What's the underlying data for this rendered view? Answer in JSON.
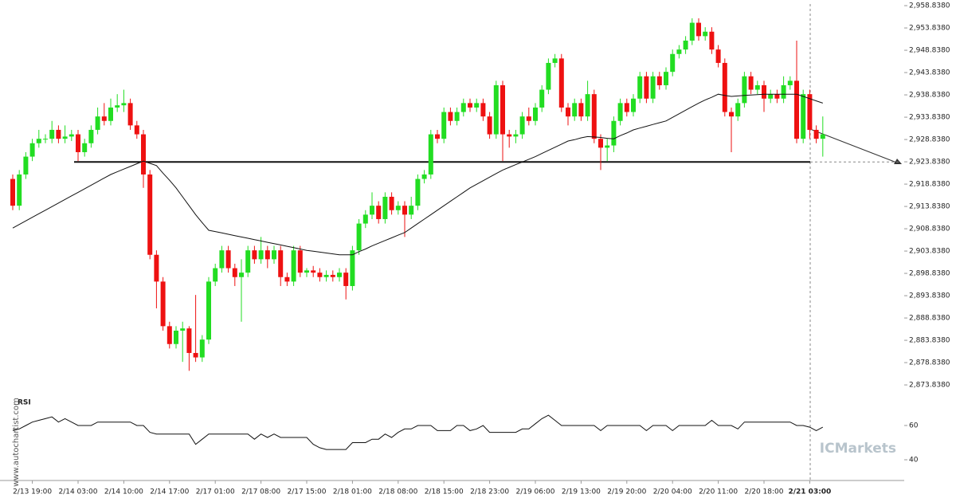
{
  "chart_data": [
    {
      "type": "candlestick",
      "categories": [
        null,
        null,
        null,
        "2/13 19:00",
        null,
        null,
        null,
        null,
        null,
        null,
        "2/14 03:00",
        null,
        null,
        null,
        null,
        null,
        null,
        "2/14 10:00",
        null,
        null,
        null,
        null,
        null,
        null,
        "2/14 17:00",
        null,
        null,
        null,
        null,
        null,
        null,
        "2/17 01:00",
        null,
        null,
        null,
        null,
        null,
        null,
        "2/17 08:00",
        null,
        null,
        null,
        null,
        null,
        null,
        "2/17 15:00",
        null,
        null,
        null,
        null,
        null,
        null,
        "2/18 01:00",
        null,
        null,
        null,
        null,
        null,
        null,
        "2/18 08:00",
        null,
        null,
        null,
        null,
        null,
        null,
        "2/18 15:00",
        null,
        null,
        null,
        null,
        null,
        null,
        "2/18 23:00",
        null,
        null,
        null,
        null,
        null,
        null,
        "2/19 06:00",
        null,
        null,
        null,
        null,
        null,
        null,
        "2/19 13:00",
        null,
        null,
        null,
        null,
        null,
        null,
        "2/19 20:00",
        null,
        null,
        null,
        null,
        null,
        null,
        "2/20 04:00",
        null,
        null,
        null,
        null,
        null,
        null,
        "2/20 11:00",
        null,
        null,
        null,
        null,
        null,
        null,
        "2/20 18:00",
        null,
        null,
        null,
        null,
        null,
        null,
        "2/21 03:00",
        null,
        null
      ],
      "open": [
        2920,
        2914,
        2921,
        2925,
        2928,
        2929,
        2929,
        2931,
        2929,
        2929.5,
        2930,
        2926,
        2928,
        2931,
        2934,
        2933,
        2936,
        2936.5,
        2937,
        2932,
        2930,
        2921,
        2903,
        2897,
        2887,
        2883,
        2886,
        2886.5,
        2881,
        2880,
        2884,
        2897,
        2900,
        2904,
        2900,
        2898,
        2899,
        2904,
        2902,
        2904,
        2902,
        2904,
        2898,
        2897,
        2904,
        2899,
        2899.5,
        2899,
        2898,
        2898.5,
        2898,
        2899,
        2896,
        2904,
        2910,
        2912,
        2914,
        2911,
        2916,
        2913,
        2914,
        2912,
        2914,
        2920,
        2921,
        2930,
        2929,
        2935,
        2933,
        2935,
        2937,
        2936,
        2937,
        2934,
        2930,
        2941,
        2930,
        2929.5,
        2930,
        2934,
        2933,
        2936,
        2940,
        2946,
        2947,
        2936,
        2934,
        2937,
        2934,
        2939,
        2929,
        2927,
        2927.5,
        2933,
        2937,
        2935,
        2938,
        2943,
        2938,
        2943,
        2941,
        2944,
        2948,
        2949,
        2951,
        2955,
        2952,
        2953,
        2949,
        2946,
        2935,
        2934,
        2937,
        2943,
        2940,
        2941,
        2938,
        2939,
        2938,
        2941,
        2942,
        2929,
        2939,
        2931,
        2929
      ],
      "high": [
        2921,
        2922,
        2926,
        2929,
        2931,
        2930,
        2933,
        2932,
        2932,
        2931,
        2931,
        2929,
        2932,
        2936,
        2937,
        2938,
        2939,
        2940,
        2938,
        2933,
        2931,
        2922,
        2904,
        2898,
        2888,
        2887,
        2888,
        2887,
        2894,
        2885,
        2898,
        2901,
        2905,
        2905,
        2901,
        2902,
        2905,
        2905,
        2907,
        2905,
        2905,
        2905,
        2899,
        2905,
        2905,
        2900,
        2900.5,
        2900,
        2899.5,
        2899.5,
        2900,
        2900,
        2905,
        2911,
        2913,
        2917,
        2915,
        2917,
        2917,
        2915,
        2915,
        2916,
        2921,
        2922,
        2931,
        2931,
        2936,
        2936,
        2936,
        2938,
        2938,
        2938,
        2938,
        2935,
        2942,
        2942,
        2931,
        2931,
        2935,
        2936,
        2937,
        2941,
        2947,
        2948,
        2948,
        2937,
        2938,
        2938,
        2942,
        2940,
        2930,
        2929,
        2934,
        2938,
        2938,
        2939,
        2944,
        2944,
        2944,
        2944,
        2945,
        2949,
        2950,
        2952,
        2956,
        2956,
        2954,
        2954,
        2950,
        2947,
        2936,
        2938,
        2944,
        2944,
        2942,
        2942,
        2940,
        2940,
        2943,
        2943,
        2951,
        2940,
        2940,
        2932,
        2934
      ],
      "low": [
        2913,
        2913,
        2920,
        2924,
        2927,
        2928,
        2928,
        2928,
        2928,
        2928.5,
        2924,
        2925,
        2927,
        2930,
        2932,
        2932,
        2935,
        2935,
        2931,
        2929,
        2918,
        2902,
        2891,
        2886,
        2882,
        2882,
        2879,
        2877,
        2879,
        2879,
        2883,
        2896,
        2899,
        2899,
        2896,
        2888,
        2898,
        2901,
        2901,
        2900,
        2901,
        2896,
        2896,
        2896,
        2898,
        2898,
        2898,
        2897,
        2897,
        2897,
        2897,
        2893,
        2895,
        2903,
        2909,
        2911,
        2910,
        2910,
        2912,
        2912,
        2907,
        2911,
        2913,
        2919,
        2920,
        2928,
        2928,
        2932,
        2932,
        2934,
        2935,
        2935,
        2933,
        2929,
        2929,
        2924,
        2927,
        2928,
        2929,
        2932,
        2932,
        2935,
        2939,
        2945,
        2935,
        2932,
        2933,
        2933,
        2933,
        2928,
        2922,
        2924,
        2926,
        2932,
        2934,
        2934,
        2937,
        2937,
        2937,
        2940,
        2940,
        2943,
        2947,
        2948,
        2950,
        2951,
        2951,
        2948,
        2945,
        2934,
        2926,
        2933,
        2936,
        2939,
        2939,
        2935,
        2937,
        2937,
        2937,
        2940,
        2928,
        2928,
        2929,
        2928,
        2925
      ],
      "close": [
        2914,
        2921,
        2925,
        2928,
        2929,
        2929,
        2931,
        2929,
        2929.5,
        2930,
        2926,
        2928,
        2931,
        2934,
        2933,
        2936,
        2936.5,
        2937,
        2932,
        2930,
        2921,
        2903,
        2897,
        2887,
        2883,
        2886,
        2886.5,
        2881,
        2880,
        2884,
        2897,
        2900,
        2904,
        2900,
        2898,
        2899,
        2904,
        2902,
        2904,
        2902,
        2904,
        2898,
        2897,
        2904,
        2899,
        2899.5,
        2899,
        2898,
        2898.5,
        2898,
        2899,
        2896,
        2904,
        2910,
        2912,
        2914,
        2911,
        2916,
        2913,
        2914,
        2912,
        2914,
        2920,
        2921,
        2930,
        2929,
        2935,
        2933,
        2935,
        2937,
        2936,
        2937,
        2934,
        2930,
        2941,
        2930,
        2929.5,
        2930,
        2934,
        2933,
        2936,
        2940,
        2946,
        2947,
        2936,
        2934,
        2937,
        2934,
        2939,
        2929,
        2927,
        2927.5,
        2933,
        2937,
        2935,
        2938,
        2943,
        2938,
        2943,
        2941,
        2944,
        2948,
        2949,
        2951,
        2955,
        2952,
        2953,
        2949,
        2946,
        2935,
        2934,
        2937,
        2943,
        2940,
        2941,
        2938,
        2939,
        2938,
        2941,
        2942,
        2929,
        2939,
        2931,
        2929,
        2930
      ],
      "up_color": "#22dd22",
      "down_color": "#ee1111",
      "series": [
        {
          "color": "#111111",
          "values": [
            2909,
            2909.8,
            2910.6,
            2911.4,
            2912.2,
            2913,
            2913.8,
            2914.6,
            2915.4,
            2916.2,
            2917,
            2917.8,
            2918.6,
            2919.4,
            2920.2,
            2921,
            2921.6,
            2922.2,
            2922.8,
            2923.4,
            2924,
            2923.5,
            2923,
            2921.3,
            2919.7,
            2918,
            2916,
            2914,
            2912,
            2910.2,
            2908.5,
            2908.2,
            2907.9,
            2907.6,
            2907.3,
            2907,
            2906.7,
            2906.4,
            2906.1,
            2905.8,
            2905.5,
            2905.2,
            2904.9,
            2904.6,
            2904.3,
            2904,
            2903.8,
            2903.6,
            2903.4,
            2903.2,
            2903,
            2903,
            2903,
            2903.7,
            2904.3,
            2905,
            2905.6,
            2906.2,
            2906.8,
            2907.4,
            2908,
            2909,
            2910,
            2911,
            2912,
            2913,
            2914,
            2915,
            2916,
            2917,
            2918,
            2918.8,
            2919.6,
            2920.4,
            2921.2,
            2922,
            2922.6,
            2923.2,
            2923.8,
            2924.4,
            2925,
            2925.7,
            2926.4,
            2927.1,
            2927.8,
            2928.5,
            2928.8,
            2929.2,
            2929.5,
            2929.4,
            2929.3,
            2929.1,
            2929,
            2929.7,
            2930.3,
            2931,
            2931.4,
            2931.8,
            2932.2,
            2932.6,
            2933,
            2933.8,
            2934.6,
            2935.4,
            2936.2,
            2937,
            2937.7,
            2938.3,
            2939,
            2938.7,
            2938.5,
            2938.6,
            2938.7,
            2938.8,
            2938.9,
            2939,
            2939,
            2939,
            2939,
            2939,
            2939,
            2938.5,
            2938,
            2937.5,
            2937
          ]
        }
      ],
      "level": 2923.8,
      "ylim": [
        2872.6,
        2960.1
      ],
      "yticks": [
        {
          "value": 2958.838,
          "label": "2,958.8380"
        },
        {
          "value": 2953.838,
          "label": "2,953.8380"
        },
        {
          "value": 2948.838,
          "label": "2,948.8380"
        },
        {
          "value": 2943.838,
          "label": "2,943.8380"
        },
        {
          "value": 2938.838,
          "label": "2,938.8380"
        },
        {
          "value": 2933.838,
          "label": "2,933.8380"
        },
        {
          "value": 2928.838,
          "label": "2,928.8380"
        },
        {
          "value": 2923.838,
          "label": "2,923.8380"
        },
        {
          "value": 2918.838,
          "label": "2,918.8380"
        },
        {
          "value": 2913.838,
          "label": "2,913.8380"
        },
        {
          "value": 2908.838,
          "label": "2,908.8380"
        },
        {
          "value": 2903.838,
          "label": "2,903.8380"
        },
        {
          "value": 2898.838,
          "label": "2,898.8380"
        },
        {
          "value": 2893.838,
          "label": "2,893.8380"
        },
        {
          "value": 2888.838,
          "label": "2,888.8380"
        },
        {
          "value": 2883.838,
          "label": "2,883.8380"
        },
        {
          "value": 2878.838,
          "label": "2,878.8380"
        },
        {
          "value": 2873.838,
          "label": "2,873.8380"
        }
      ]
    },
    {
      "type": "line",
      "title": "RSI",
      "series": [
        {
          "color": "#111111",
          "values": [
            57,
            58,
            60,
            62,
            63,
            64,
            65,
            62,
            64,
            62,
            60,
            60,
            60,
            62,
            62,
            62,
            62,
            62,
            62,
            60,
            60,
            56,
            55,
            55,
            55,
            55,
            55,
            55,
            49,
            52,
            55,
            55,
            55,
            55,
            55,
            55,
            55,
            52,
            55,
            53,
            55,
            53,
            53,
            53,
            53,
            53,
            49,
            47,
            46,
            46,
            46,
            46,
            50,
            50,
            50,
            52,
            52,
            55,
            53,
            56,
            58,
            58,
            60,
            60,
            60,
            57,
            57,
            57,
            60,
            60,
            57,
            58,
            60,
            56,
            56,
            56,
            56,
            56,
            58,
            58,
            61,
            64,
            66,
            63,
            60,
            60,
            60,
            60,
            60,
            60,
            57,
            60,
            60,
            60,
            60,
            60,
            60,
            57,
            60,
            60,
            60,
            57,
            60,
            60,
            60,
            60,
            60,
            63,
            60,
            60,
            60,
            58,
            62,
            62,
            62,
            62,
            62,
            62,
            62,
            62,
            60,
            60,
            59,
            57,
            59
          ]
        }
      ],
      "ylim": [
        29.3,
        75.8
      ],
      "yticks": [
        60,
        40
      ]
    }
  ],
  "watermark": "www.autochartist.com",
  "brand": "ICMarkets"
}
